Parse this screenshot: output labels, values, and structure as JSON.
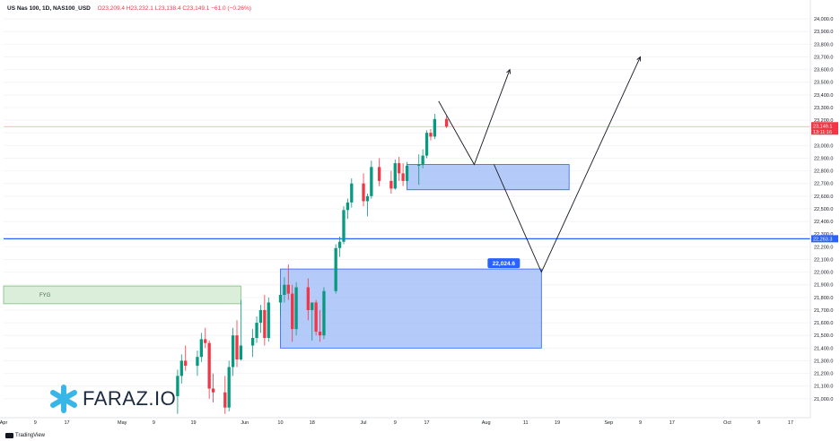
{
  "header": {
    "symbol": "US Nas 100, 1D, NAS100_USD",
    "ohlc": "O23,209.4 H23,232.1 L23,138.4 C23,149.1 −61.0 (−0.26%)"
  },
  "labels": {
    "fvg": "FYG",
    "zone_price": "22,024.6",
    "brand": "FARAZ.IO",
    "tradingview": "TradingView"
  },
  "price_tags": {
    "current": "23,149.1",
    "countdown": "13:11:16",
    "hline": "22,263.3"
  },
  "colors": {
    "bull": "#089981",
    "bear": "#f23645",
    "zone_fill": "#9bb8f5",
    "zone_stroke": "#2962ff",
    "fvg_fill": "#d6ecd6",
    "hline": "#2962ff",
    "brand_icon": "#39b6e8"
  },
  "chart_data": {
    "type": "candlestick",
    "ylim": [
      20850,
      24050
    ],
    "y_ticks": [
      "24,000.0",
      "23,900.0",
      "23,800.0",
      "23,700.0",
      "23,600.0",
      "23,500.0",
      "23,400.0",
      "23,300.0",
      "23,200.0",
      "23,100.0",
      "23,000.0",
      "22,900.0",
      "22,800.0",
      "22,700.0",
      "22,600.0",
      "22,500.0",
      "22,400.0",
      "22,300.0",
      "22,200.0",
      "22,100.0",
      "22,000.0",
      "21,900.0",
      "21,800.0",
      "21,700.0",
      "21,600.0",
      "21,500.0",
      "21,400.0",
      "21,300.0",
      "21,200.0",
      "21,100.0",
      "21,000.0"
    ],
    "x_ticks": [
      "Apr",
      "9",
      "17",
      "May",
      "9",
      "19",
      "Jun",
      "10",
      "18",
      "Jul",
      "9",
      "17",
      "Aug",
      "11",
      "19",
      "Sep",
      "9",
      "17",
      "Oct",
      "9",
      "17"
    ],
    "x_tick_dates": [
      "2024-04-01",
      "2024-04-09",
      "2024-04-17",
      "2024-05-01",
      "2024-05-09",
      "2024-05-19",
      "2024-06-01",
      "2024-06-10",
      "2024-06-18",
      "2024-07-01",
      "2024-07-09",
      "2024-07-17",
      "2024-08-01",
      "2024-08-11",
      "2024-08-19",
      "2024-09-01",
      "2024-09-09",
      "2024-09-17",
      "2024-10-01",
      "2024-10-09",
      "2024-10-17"
    ],
    "candles": [
      {
        "date": "2024-05-15",
        "o": 21020,
        "h": 21230,
        "l": 20880,
        "c": 21180
      },
      {
        "date": "2024-05-16",
        "o": 21180,
        "h": 21350,
        "l": 21120,
        "c": 21300
      },
      {
        "date": "2024-05-17",
        "o": 21300,
        "h": 21420,
        "l": 21220,
        "c": 21260
      },
      {
        "date": "2024-05-20",
        "o": 21260,
        "h": 21380,
        "l": 21180,
        "c": 21330
      },
      {
        "date": "2024-05-21",
        "o": 21330,
        "h": 21520,
        "l": 21290,
        "c": 21470
      },
      {
        "date": "2024-05-22",
        "o": 21470,
        "h": 21560,
        "l": 21400,
        "c": 21440
      },
      {
        "date": "2024-05-23",
        "o": 21440,
        "h": 21460,
        "l": 21000,
        "c": 21080
      },
      {
        "date": "2024-05-24",
        "o": 21080,
        "h": 21200,
        "l": 20970,
        "c": 21050
      },
      {
        "date": "2024-05-27",
        "o": 21050,
        "h": 21180,
        "l": 20880,
        "c": 20930
      },
      {
        "date": "2024-05-28",
        "o": 20930,
        "h": 21300,
        "l": 20900,
        "c": 21250
      },
      {
        "date": "2024-05-29",
        "o": 21250,
        "h": 21560,
        "l": 21180,
        "c": 21500
      },
      {
        "date": "2024-05-30",
        "o": 21500,
        "h": 21620,
        "l": 21250,
        "c": 21310
      },
      {
        "date": "2024-05-31",
        "o": 21310,
        "h": 21780,
        "l": 21300,
        "c": 21420
      },
      {
        "date": "2024-06-03",
        "o": 21420,
        "h": 21550,
        "l": 21330,
        "c": 21480
      },
      {
        "date": "2024-06-04",
        "o": 21480,
        "h": 21650,
        "l": 21440,
        "c": 21600
      },
      {
        "date": "2024-06-05",
        "o": 21600,
        "h": 21740,
        "l": 21520,
        "c": 21700
      },
      {
        "date": "2024-06-06",
        "o": 21700,
        "h": 21820,
        "l": 21420,
        "c": 21480
      },
      {
        "date": "2024-06-07",
        "o": 21480,
        "h": 21800,
        "l": 21450,
        "c": 21760
      },
      {
        "date": "2024-06-10",
        "o": 21760,
        "h": 21900,
        "l": 21650,
        "c": 21820
      },
      {
        "date": "2024-06-11",
        "o": 21820,
        "h": 21960,
        "l": 21760,
        "c": 21900
      },
      {
        "date": "2024-06-12",
        "o": 21900,
        "h": 22060,
        "l": 21780,
        "c": 21830
      },
      {
        "date": "2024-06-13",
        "o": 21830,
        "h": 21900,
        "l": 21450,
        "c": 21550
      },
      {
        "date": "2024-06-14",
        "o": 21550,
        "h": 21920,
        "l": 21500,
        "c": 21880
      },
      {
        "date": "2024-06-17",
        "o": 21880,
        "h": 21950,
        "l": 21620,
        "c": 21700
      },
      {
        "date": "2024-06-18",
        "o": 21700,
        "h": 21760,
        "l": 21460,
        "c": 21760
      },
      {
        "date": "2024-06-19",
        "o": 21760,
        "h": 21780,
        "l": 21500,
        "c": 21530
      },
      {
        "date": "2024-06-20",
        "o": 21530,
        "h": 21700,
        "l": 21450,
        "c": 21500
      },
      {
        "date": "2024-06-21",
        "o": 21500,
        "h": 21880,
        "l": 21470,
        "c": 21850
      },
      {
        "date": "2024-06-24",
        "o": 21850,
        "h": 22220,
        "l": 21830,
        "c": 22190
      },
      {
        "date": "2024-06-25",
        "o": 22190,
        "h": 22280,
        "l": 22120,
        "c": 22240
      },
      {
        "date": "2024-06-26",
        "o": 22240,
        "h": 22520,
        "l": 22220,
        "c": 22490
      },
      {
        "date": "2024-06-27",
        "o": 22490,
        "h": 22580,
        "l": 22420,
        "c": 22550
      },
      {
        "date": "2024-06-28",
        "o": 22550,
        "h": 22740,
        "l": 22510,
        "c": 22700
      },
      {
        "date": "2024-07-01",
        "o": 22700,
        "h": 22780,
        "l": 22520,
        "c": 22560
      },
      {
        "date": "2024-07-02",
        "o": 22560,
        "h": 22620,
        "l": 22440,
        "c": 22600
      },
      {
        "date": "2024-07-03",
        "o": 22600,
        "h": 22880,
        "l": 22580,
        "c": 22830
      },
      {
        "date": "2024-07-05",
        "o": 22830,
        "h": 22900,
        "l": 22680,
        "c": 22720
      },
      {
        "date": "2024-07-08",
        "o": 22720,
        "h": 22800,
        "l": 22620,
        "c": 22660
      },
      {
        "date": "2024-07-09",
        "o": 22660,
        "h": 22890,
        "l": 22650,
        "c": 22860
      },
      {
        "date": "2024-07-10",
        "o": 22860,
        "h": 22910,
        "l": 22720,
        "c": 22780
      },
      {
        "date": "2024-07-11",
        "o": 22780,
        "h": 22860,
        "l": 22680,
        "c": 22720
      },
      {
        "date": "2024-07-12",
        "o": 22720,
        "h": 22870,
        "l": 22690,
        "c": 22840
      },
      {
        "date": "2024-07-15",
        "o": 22840,
        "h": 22930,
        "l": 22690,
        "c": 22850
      },
      {
        "date": "2024-07-16",
        "o": 22850,
        "h": 22970,
        "l": 22820,
        "c": 22920
      },
      {
        "date": "2024-07-17",
        "o": 22920,
        "h": 23120,
        "l": 22900,
        "c": 23100
      },
      {
        "date": "2024-07-18",
        "o": 23100,
        "h": 23130,
        "l": 23040,
        "c": 23070
      },
      {
        "date": "2024-07-19",
        "o": 23070,
        "h": 23250,
        "l": 23050,
        "c": 23209
      },
      {
        "date": "2024-07-22",
        "o": 23209.4,
        "h": 23232.1,
        "l": 23138.4,
        "c": 23149.1
      }
    ],
    "zones": [
      {
        "label": "22,024.6",
        "date_from": "2024-06-10",
        "date_to": "2024-08-15",
        "price_from": 21400,
        "price_to": 22024.6
      },
      {
        "label": "",
        "date_from": "2024-07-12",
        "date_to": "2024-08-22",
        "price_from": 22650,
        "price_to": 22850
      },
      {
        "label": "FYG",
        "date_from": "2024-03-25",
        "date_to": "2024-05-31",
        "price_from": 21750,
        "price_to": 21890
      }
    ],
    "hlines": [
      {
        "price": 22263.3,
        "color": "#2962ff"
      },
      {
        "price": 23149.1,
        "color": "#f7a5ab"
      }
    ],
    "projection_paths": [
      {
        "points": [
          [
            "2024-07-20",
            23350
          ],
          [
            "2024-07-29",
            22850
          ],
          [
            "2024-08-07",
            23600
          ]
        ]
      },
      {
        "points": [
          [
            "2024-08-03",
            22850
          ],
          [
            "2024-08-15",
            22000
          ],
          [
            "2024-09-09",
            23700
          ]
        ]
      }
    ]
  }
}
